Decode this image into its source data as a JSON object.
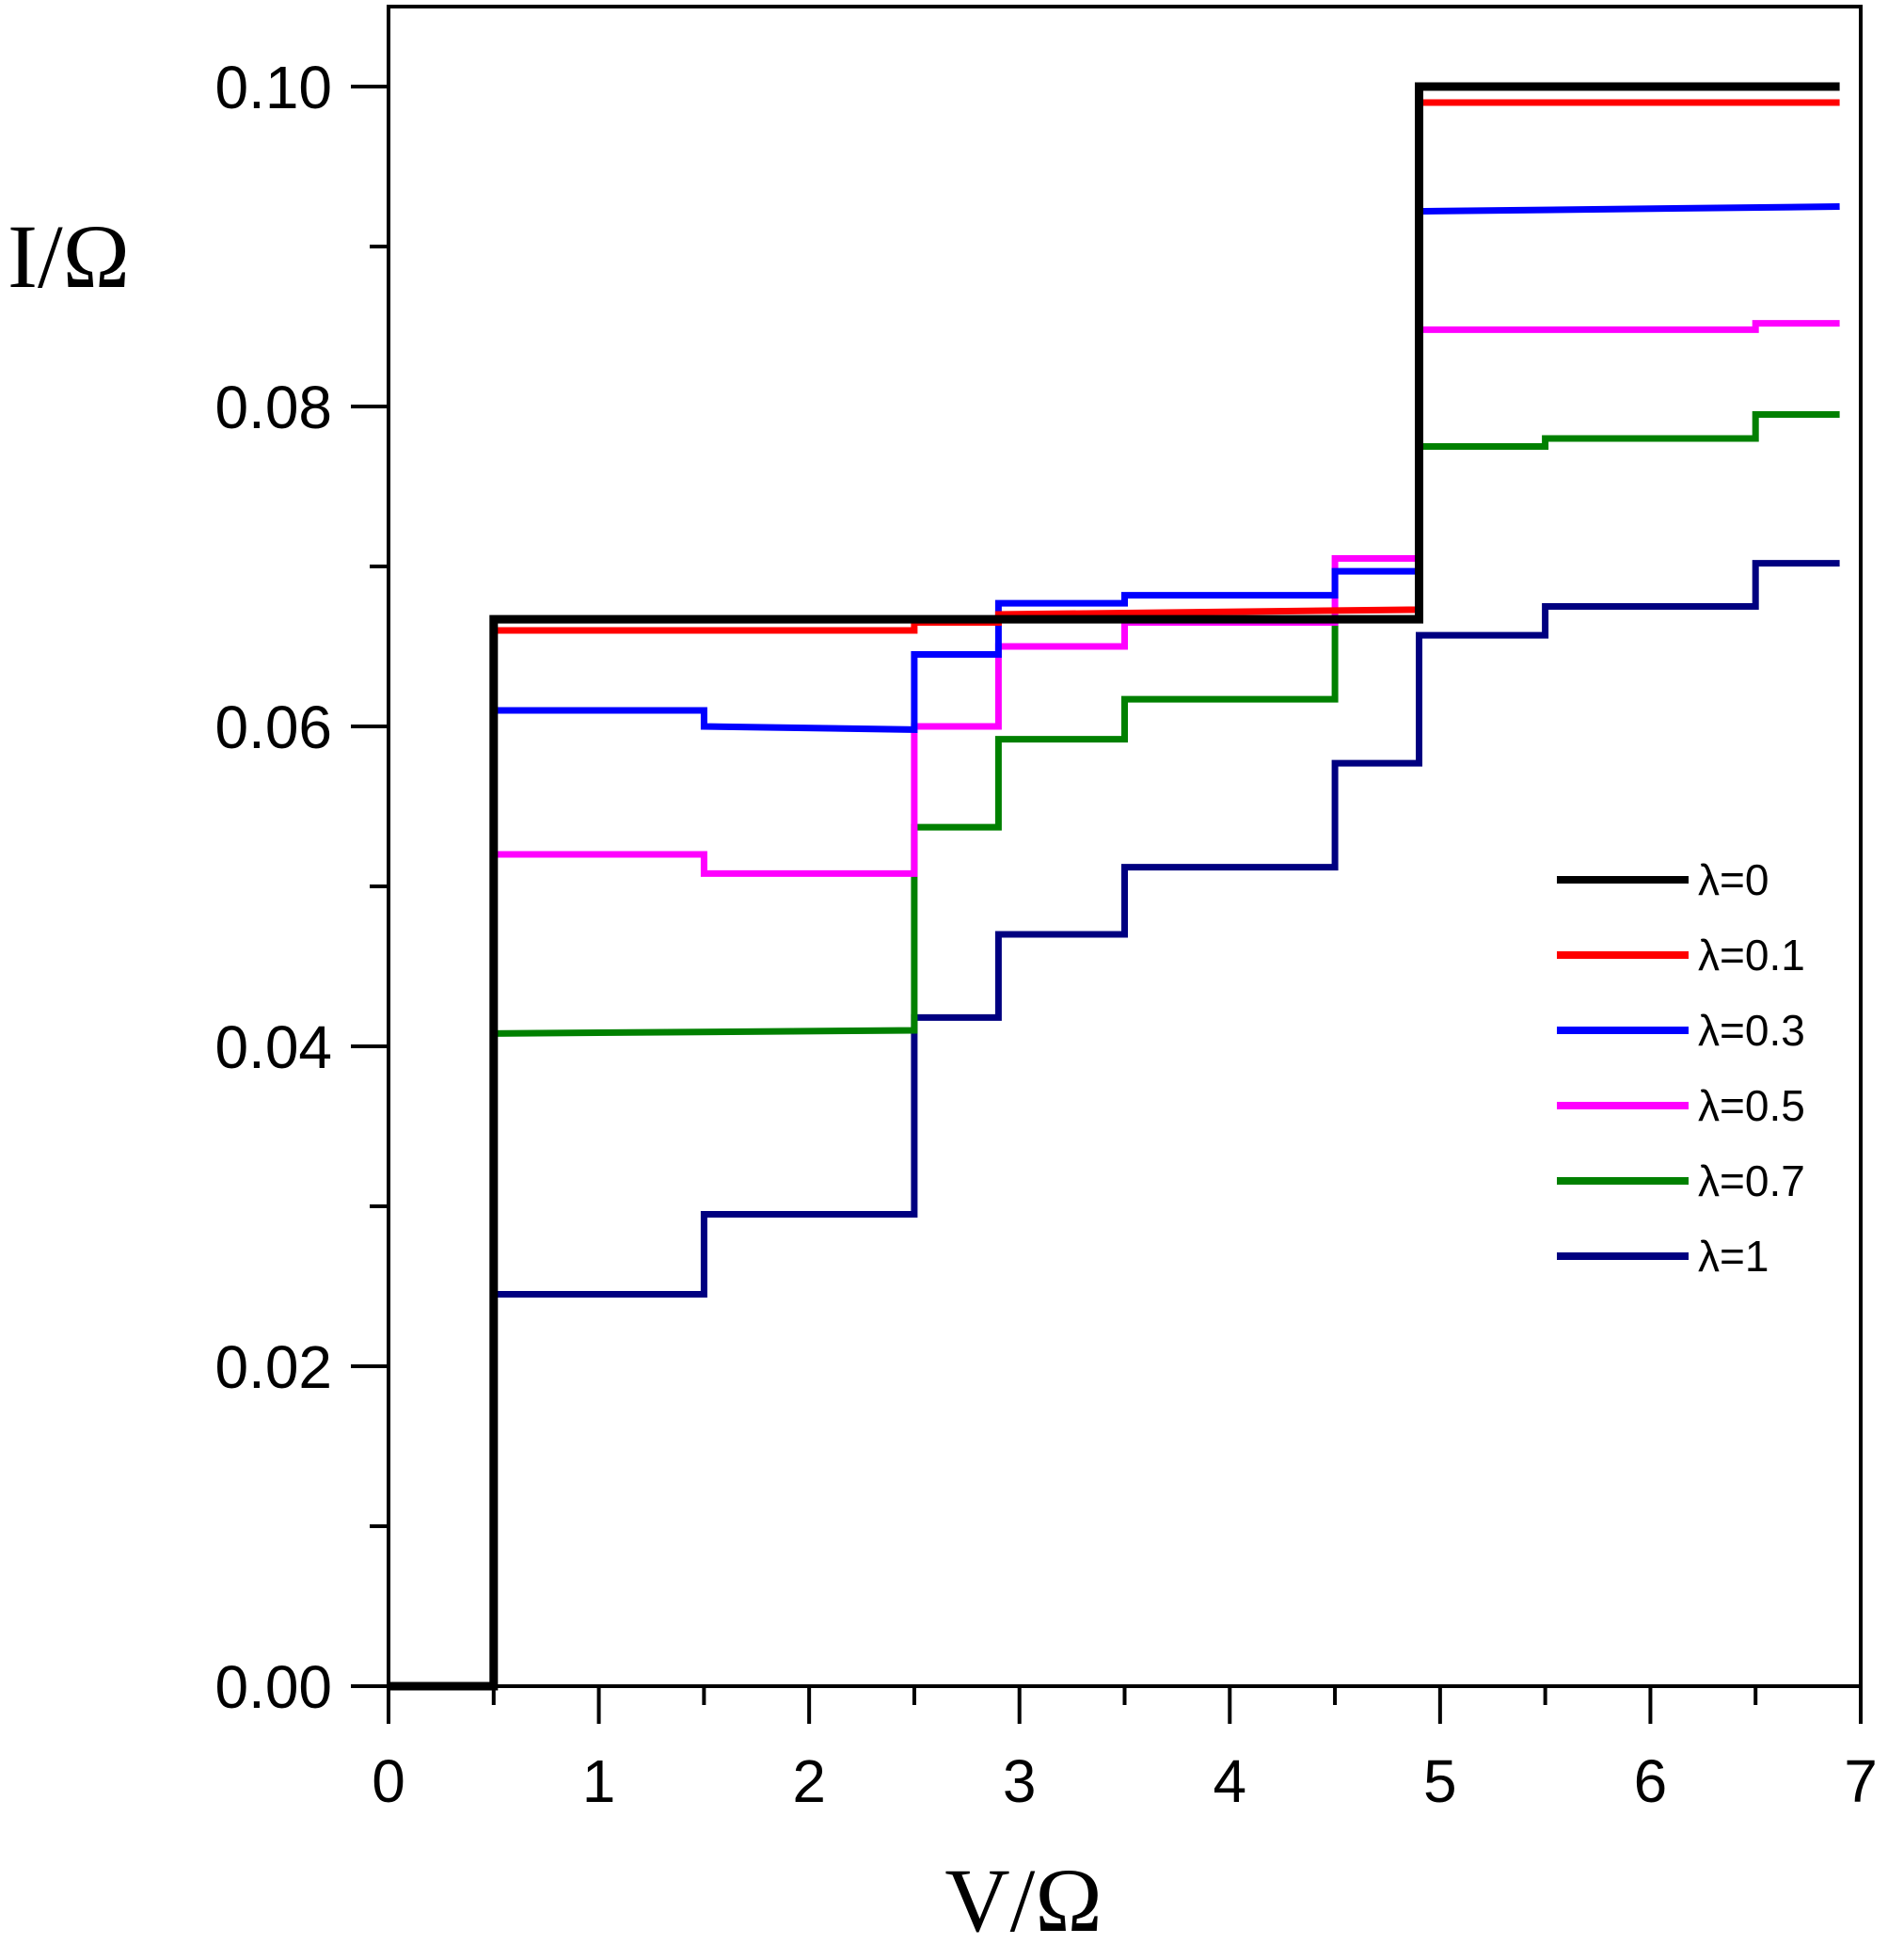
{
  "chart_data": {
    "type": "line",
    "title": "",
    "xlabel": "V/Ω",
    "ylabel": "I/Ω",
    "xlim": [
      0,
      7
    ],
    "ylim": [
      0,
      0.105
    ],
    "x_ticks": [
      0,
      1,
      2,
      3,
      4,
      5,
      6,
      7
    ],
    "y_ticks": [
      0.0,
      0.02,
      0.04,
      0.06,
      0.08,
      0.1
    ],
    "x_tick_labels": [
      "0",
      "1",
      "2",
      "3",
      "4",
      "5",
      "6",
      "7"
    ],
    "y_tick_labels": [
      "0.00",
      "0.02",
      "0.04",
      "0.06",
      "0.08",
      "0.10"
    ],
    "grid": false,
    "legend_position": "right",
    "series": [
      {
        "name": "λ=0",
        "color": "#000000",
        "x": [
          0,
          0.5,
          0.5,
          4.9,
          4.9,
          6.9
        ],
        "y": [
          0,
          0,
          0.0667,
          0.0667,
          0.1,
          0.1
        ]
      },
      {
        "name": "λ=0.1",
        "color": "#ff0000",
        "x": [
          0.5,
          2.5,
          2.5,
          2.9,
          2.9,
          4.9,
          4.9,
          6.9
        ],
        "y": [
          0.066,
          0.066,
          0.0665,
          0.0665,
          0.067,
          0.0673,
          0.099,
          0.099
        ]
      },
      {
        "name": "λ=0.3",
        "color": "#0000ff",
        "x": [
          0.5,
          1.5,
          1.5,
          2.5,
          2.5,
          2.9,
          2.9,
          3.5,
          3.5,
          4.5,
          4.5,
          4.9,
          4.9,
          6.9
        ],
        "y": [
          0.061,
          0.061,
          0.06,
          0.0598,
          0.0645,
          0.0645,
          0.0677,
          0.0677,
          0.0682,
          0.0682,
          0.0697,
          0.0697,
          0.0922,
          0.0925
        ]
      },
      {
        "name": "λ=0.5",
        "color": "#ff00ff",
        "x": [
          0.5,
          1.5,
          1.5,
          2.5,
          2.5,
          2.9,
          2.9,
          3.5,
          3.5,
          4.5,
          4.5,
          4.9,
          4.9,
          6.5,
          6.5,
          6.9
        ],
        "y": [
          0.052,
          0.052,
          0.0508,
          0.0508,
          0.06,
          0.06,
          0.065,
          0.065,
          0.0665,
          0.0665,
          0.0705,
          0.0705,
          0.0848,
          0.0848,
          0.0852,
          0.0852
        ]
      },
      {
        "name": "λ=0.7",
        "color": "#008000",
        "x": [
          0.5,
          2.5,
          2.5,
          2.9,
          2.9,
          3.5,
          3.5,
          4.5,
          4.5,
          4.9,
          4.9,
          5.5,
          5.5,
          6.5,
          6.5,
          6.9
        ],
        "y": [
          0.0408,
          0.041,
          0.0537,
          0.0537,
          0.0592,
          0.0592,
          0.0617,
          0.0617,
          0.0667,
          0.0667,
          0.0775,
          0.0775,
          0.078,
          0.078,
          0.0795,
          0.0795
        ]
      },
      {
        "name": "λ=1",
        "color": "#000080",
        "x": [
          0.5,
          1.5,
          1.5,
          2.5,
          2.5,
          2.9,
          2.9,
          3.5,
          3.5,
          4.5,
          4.5,
          4.9,
          4.9,
          5.5,
          5.5,
          6.5,
          6.5,
          6.9
        ],
        "y": [
          0.0245,
          0.0245,
          0.0295,
          0.0295,
          0.0418,
          0.0418,
          0.047,
          0.047,
          0.0512,
          0.0512,
          0.0577,
          0.0577,
          0.0657,
          0.0657,
          0.0675,
          0.0675,
          0.0702,
          0.0702
        ]
      }
    ]
  }
}
